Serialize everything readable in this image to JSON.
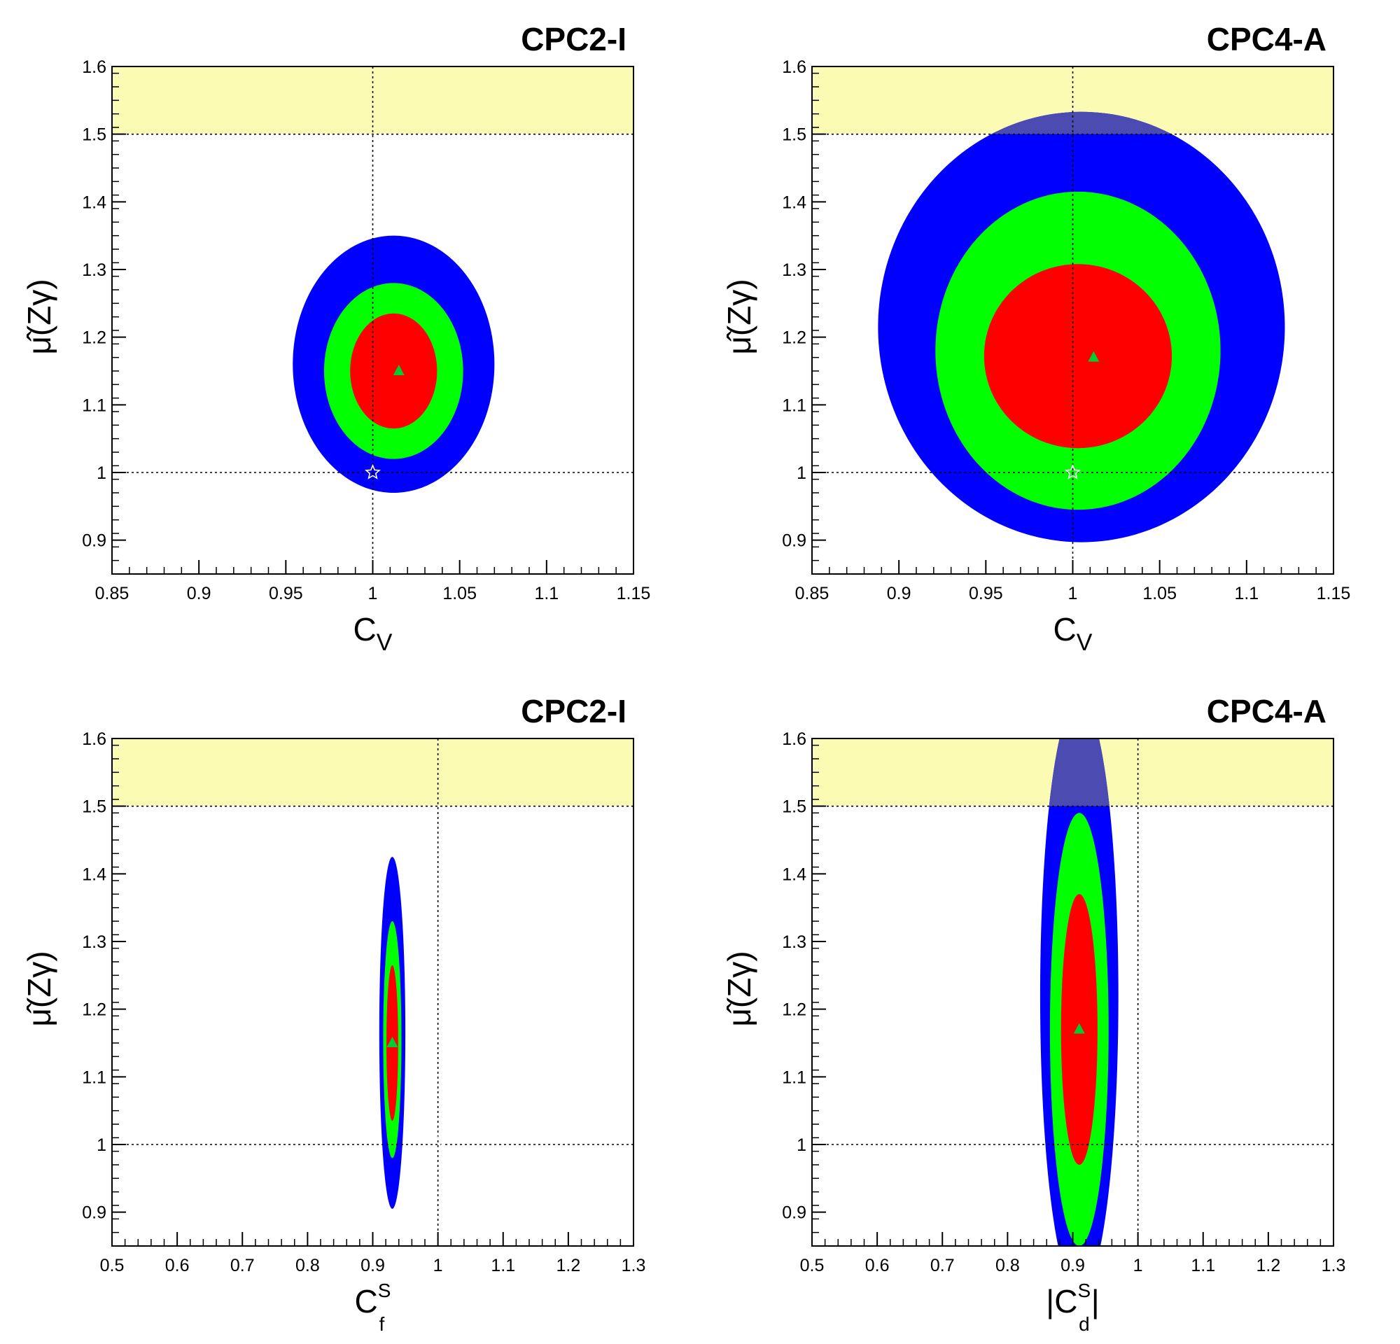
{
  "colors": {
    "band": "#fbfbb4",
    "sigma3": "#0000ff",
    "sigma2": "#00ff00",
    "sigma1": "#ff0000",
    "band_overlap": "#4b4bb2",
    "best_fit": "#00cc33",
    "reference_lines": "#000000"
  },
  "chart_data": [
    {
      "type": "contour",
      "title": "CPC2-I",
      "xlabel": "C",
      "xlabel_sub": "V",
      "xlabel_sup": "",
      "xlabel_abs": false,
      "ylabel": "μ̂(Zγ)",
      "xlim": [
        0.85,
        1.15
      ],
      "ylim": [
        0.85,
        1.6
      ],
      "xticks": [
        0.85,
        0.9,
        0.95,
        1,
        1.05,
        1.1,
        1.15
      ],
      "xtick_labels": [
        "0.85",
        "0.9",
        "0.95",
        "1",
        "1.05",
        "1.1",
        "1.15"
      ],
      "yticks": [
        0.9,
        1,
        1.1,
        1.2,
        1.3,
        1.4,
        1.5,
        1.6
      ],
      "ytick_labels": [
        "0.9",
        "1",
        "1.1",
        "1.2",
        "1.3",
        "1.4",
        "1.5",
        "1.6"
      ],
      "excluded_band": [
        1.5,
        1.6
      ],
      "sm_point": [
        1.0,
        1.0
      ],
      "best_fit": [
        1.015,
        1.15
      ],
      "regions": [
        {
          "level": "3sigma",
          "center": [
            1.012,
            1.16
          ],
          "sx": 0.058,
          "sy": 0.19,
          "angle": 0
        },
        {
          "level": "2sigma",
          "center": [
            1.012,
            1.15
          ],
          "sx": 0.04,
          "sy": 0.13,
          "angle": 0
        },
        {
          "level": "1sigma",
          "center": [
            1.012,
            1.15
          ],
          "sx": 0.025,
          "sy": 0.085,
          "angle": 0
        }
      ]
    },
    {
      "type": "contour",
      "title": "CPC4-A",
      "xlabel": "C",
      "xlabel_sub": "V",
      "xlabel_sup": "",
      "xlabel_abs": false,
      "ylabel": "μ̂(Zγ)",
      "xlim": [
        0.85,
        1.15
      ],
      "ylim": [
        0.85,
        1.6
      ],
      "xticks": [
        0.85,
        0.9,
        0.95,
        1,
        1.05,
        1.1,
        1.15
      ],
      "xtick_labels": [
        "0.85",
        "0.9",
        "0.95",
        "1",
        "1.05",
        "1.1",
        "1.15"
      ],
      "yticks": [
        0.9,
        1,
        1.1,
        1.2,
        1.3,
        1.4,
        1.5,
        1.6
      ],
      "ytick_labels": [
        "0.9",
        "1",
        "1.1",
        "1.2",
        "1.3",
        "1.4",
        "1.5",
        "1.6"
      ],
      "excluded_band": [
        1.5,
        1.6
      ],
      "sm_point": [
        1.0,
        1.0
      ],
      "best_fit": [
        1.012,
        1.17
      ],
      "regions": [
        {
          "level": "3sigma",
          "center": [
            1.005,
            1.215
          ],
          "sx": 0.117,
          "sy": 0.318,
          "angle": -0.55
        },
        {
          "level": "2sigma",
          "center": [
            1.003,
            1.18
          ],
          "sx": 0.082,
          "sy": 0.235,
          "angle": -0.5
        },
        {
          "level": "1sigma",
          "center": [
            1.003,
            1.172
          ],
          "sx": 0.054,
          "sy": 0.136,
          "angle": -0.45
        }
      ]
    },
    {
      "type": "contour",
      "title": "CPC2-I",
      "xlabel": "C",
      "xlabel_sub": "f",
      "xlabel_sup": "S",
      "xlabel_abs": false,
      "ylabel": "μ̂(Zγ)",
      "xlim": [
        0.5,
        1.3
      ],
      "ylim": [
        0.85,
        1.6
      ],
      "xticks": [
        0.5,
        0.6,
        0.7,
        0.8,
        0.9,
        1,
        1.1,
        1.2,
        1.3
      ],
      "xtick_labels": [
        "0.5",
        "0.6",
        "0.7",
        "0.8",
        "0.9",
        "1",
        "1.1",
        "1.2",
        "1.3"
      ],
      "yticks": [
        0.9,
        1,
        1.1,
        1.2,
        1.3,
        1.4,
        1.5,
        1.6
      ],
      "ytick_labels": [
        "0.9",
        "1",
        "1.1",
        "1.2",
        "1.3",
        "1.4",
        "1.5",
        "1.6"
      ],
      "excluded_band": [
        1.5,
        1.6
      ],
      "sm_point": [
        1.0,
        1.0
      ],
      "best_fit": [
        0.93,
        1.15
      ],
      "regions": [
        {
          "level": "3sigma",
          "center": [
            0.93,
            1.165
          ],
          "sx": 0.02,
          "sy": 0.26,
          "angle": -0.55
        },
        {
          "level": "2sigma",
          "center": [
            0.93,
            1.155
          ],
          "sx": 0.014,
          "sy": 0.175,
          "angle": -0.55
        },
        {
          "level": "1sigma",
          "center": [
            0.93,
            1.15
          ],
          "sx": 0.009,
          "sy": 0.115,
          "angle": -0.55
        }
      ]
    },
    {
      "type": "contour",
      "title": "CPC4-A",
      "xlabel": "C",
      "xlabel_sub": "d",
      "xlabel_sup": "S",
      "xlabel_abs": true,
      "ylabel": "μ̂(Zγ)",
      "xlim": [
        0.5,
        1.3
      ],
      "ylim": [
        0.85,
        1.6
      ],
      "xticks": [
        0.5,
        0.6,
        0.7,
        0.8,
        0.9,
        1,
        1.1,
        1.2,
        1.3
      ],
      "xtick_labels": [
        "0.5",
        "0.6",
        "0.7",
        "0.8",
        "0.9",
        "1",
        "1.1",
        "1.2",
        "1.3"
      ],
      "yticks": [
        0.9,
        1,
        1.1,
        1.2,
        1.3,
        1.4,
        1.5,
        1.6
      ],
      "ytick_labels": [
        "0.9",
        "1",
        "1.1",
        "1.2",
        "1.3",
        "1.4",
        "1.5",
        "1.6"
      ],
      "excluded_band": [
        1.5,
        1.6
      ],
      "sm_point": [
        1.0,
        1.0
      ],
      "best_fit": [
        0.91,
        1.17
      ],
      "regions": [
        {
          "level": "3sigma",
          "center": [
            0.91,
            1.22
          ],
          "sx": 0.06,
          "sy": 0.44,
          "angle": -0.62
        },
        {
          "level": "2sigma",
          "center": [
            0.91,
            1.17
          ],
          "sx": 0.045,
          "sy": 0.32,
          "angle": -0.62
        },
        {
          "level": "1sigma",
          "center": [
            0.91,
            1.17
          ],
          "sx": 0.028,
          "sy": 0.2,
          "angle": -0.62
        }
      ]
    }
  ]
}
